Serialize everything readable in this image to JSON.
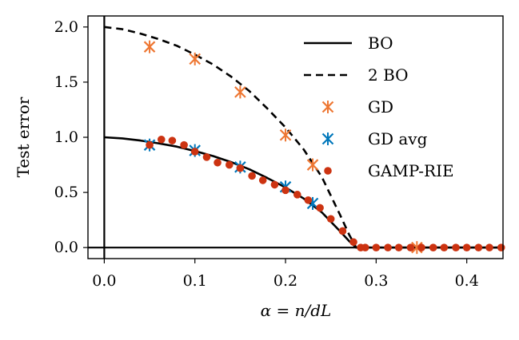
{
  "chart_data": {
    "type": "line",
    "title": "",
    "xlabel": "α = n/dL",
    "ylabel": "Test error",
    "xlim": [
      -0.018,
      0.44
    ],
    "ylim": [
      -0.1,
      2.1
    ],
    "xticks": [
      0.0,
      0.1,
      0.2,
      0.3,
      0.4
    ],
    "xtick_labels": [
      "0.0",
      "0.1",
      "0.2",
      "0.3",
      "0.4"
    ],
    "yticks": [
      0.0,
      0.5,
      1.0,
      1.5,
      2.0
    ],
    "ytick_labels": [
      "0.0",
      "0.5",
      "1.0",
      "1.5",
      "2.0"
    ],
    "grid": false,
    "legend_position": "top-right",
    "colors": {
      "bo": "#000000",
      "gd": "#ee7733",
      "gd_avg": "#0077bb",
      "gamp": "#cc3311"
    },
    "series": [
      {
        "name": "BO",
        "style": "solid-line",
        "x": [
          0.0,
          0.02,
          0.04,
          0.06,
          0.08,
          0.1,
          0.12,
          0.14,
          0.16,
          0.18,
          0.2,
          0.22,
          0.24,
          0.26,
          0.27,
          0.278,
          0.29,
          0.44
        ],
        "y": [
          1.0,
          0.99,
          0.97,
          0.945,
          0.915,
          0.875,
          0.83,
          0.775,
          0.71,
          0.63,
          0.545,
          0.445,
          0.32,
          0.15,
          0.06,
          0.0,
          0.0,
          0.0
        ]
      },
      {
        "name": "2 BO",
        "style": "dashed-line",
        "x": [
          0.0,
          0.02,
          0.04,
          0.06,
          0.08,
          0.1,
          0.12,
          0.14,
          0.16,
          0.18,
          0.2,
          0.22,
          0.24,
          0.26,
          0.27,
          0.278,
          0.29,
          0.44
        ],
        "y": [
          2.0,
          1.98,
          1.94,
          1.89,
          1.83,
          1.75,
          1.66,
          1.55,
          1.42,
          1.26,
          1.09,
          0.89,
          0.64,
          0.3,
          0.12,
          0.0,
          0.0,
          0.0
        ]
      },
      {
        "name": "GD",
        "style": "x-marker-errorbar",
        "x": [
          0.05,
          0.1,
          0.15,
          0.2,
          0.23,
          0.345
        ],
        "y": [
          1.82,
          1.71,
          1.41,
          1.02,
          0.75,
          0.0
        ]
      },
      {
        "name": "GD avg",
        "style": "x-marker-errorbar",
        "x": [
          0.05,
          0.1,
          0.15,
          0.2,
          0.23
        ],
        "y": [
          0.93,
          0.88,
          0.73,
          0.55,
          0.4
        ]
      },
      {
        "name": "GAMP-RIE",
        "style": "dot-marker",
        "x": [
          0.05,
          0.063,
          0.075,
          0.088,
          0.1,
          0.113,
          0.125,
          0.138,
          0.15,
          0.163,
          0.175,
          0.188,
          0.2,
          0.213,
          0.225,
          0.238,
          0.25,
          0.263,
          0.275,
          0.283,
          0.288,
          0.3,
          0.313,
          0.325,
          0.338,
          0.35,
          0.363,
          0.375,
          0.388,
          0.4,
          0.413,
          0.425,
          0.438
        ],
        "y": [
          0.93,
          0.98,
          0.97,
          0.93,
          0.87,
          0.82,
          0.77,
          0.75,
          0.72,
          0.65,
          0.61,
          0.57,
          0.52,
          0.48,
          0.43,
          0.36,
          0.26,
          0.15,
          0.05,
          0.0,
          0.0,
          0.0,
          0.0,
          0.0,
          0.0,
          0.0,
          0.0,
          0.0,
          0.0,
          0.0,
          0.0,
          0.0,
          0.0
        ]
      }
    ]
  }
}
